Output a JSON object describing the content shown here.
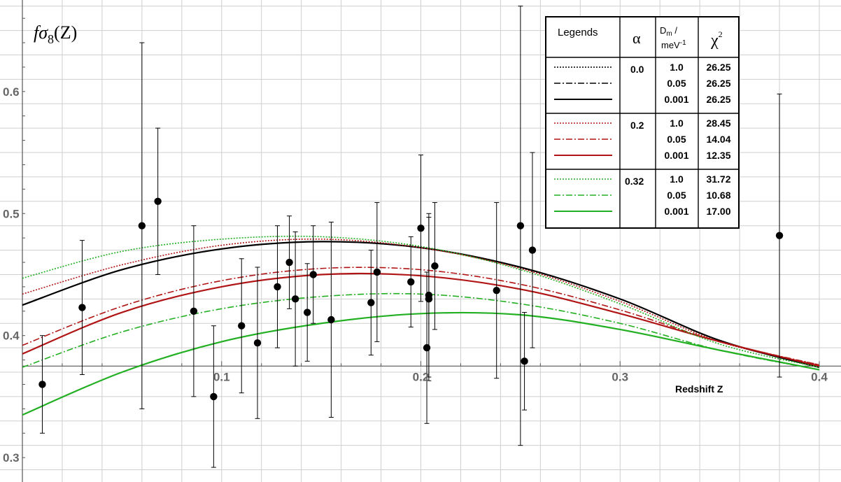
{
  "chart_data": {
    "type": "line",
    "title": "",
    "ylabel_main": "fσ",
    "ylabel_sub": "8",
    "ylabel_arg": "(Z)",
    "xlabel": "Redshift Z",
    "xlim": [
      0.0,
      0.4
    ],
    "ylim": [
      0.28,
      0.675
    ],
    "x_axis_crosses_y": 0.375,
    "grid": true,
    "x_ticks": [
      {
        "value": 0.1,
        "label": "0.1"
      },
      {
        "value": 0.2,
        "label": "0.2"
      },
      {
        "value": 0.3,
        "label": "0.3"
      },
      {
        "value": 0.4,
        "label": "0.4"
      }
    ],
    "y_ticks": [
      {
        "value": 0.3,
        "label": "0.3"
      },
      {
        "value": 0.4,
        "label": "0.4"
      },
      {
        "value": 0.5,
        "label": "0.5"
      },
      {
        "value": 0.6,
        "label": "0.6"
      }
    ],
    "series": [
      {
        "alpha": "0.0",
        "dm": "1.0",
        "color": "#000000",
        "dash": "2,2",
        "x": [
          0.0,
          0.05,
          0.1,
          0.15,
          0.2,
          0.25,
          0.3,
          0.35,
          0.4
        ],
        "y": [
          0.425,
          0.454,
          0.471,
          0.477,
          0.472,
          0.456,
          0.43,
          0.396,
          0.374
        ]
      },
      {
        "alpha": "0.0",
        "dm": "0.05",
        "color": "#000000",
        "dash": "9,3,2,3",
        "x": [
          0.0,
          0.05,
          0.1,
          0.15,
          0.2,
          0.25,
          0.3,
          0.35,
          0.4
        ],
        "y": [
          0.425,
          0.454,
          0.471,
          0.477,
          0.472,
          0.456,
          0.43,
          0.396,
          0.374
        ]
      },
      {
        "alpha": "0.0",
        "dm": "0.001",
        "color": "#000000",
        "dash": "",
        "x": [
          0.0,
          0.05,
          0.1,
          0.15,
          0.2,
          0.25,
          0.3,
          0.35,
          0.4
        ],
        "y": [
          0.425,
          0.454,
          0.471,
          0.477,
          0.472,
          0.456,
          0.43,
          0.396,
          0.374
        ]
      },
      {
        "alpha": "0.2",
        "dm": "1.0",
        "color": "#b01414",
        "dash": "2,2",
        "x": [
          0.0,
          0.05,
          0.1,
          0.15,
          0.2,
          0.25,
          0.3,
          0.35,
          0.4
        ],
        "y": [
          0.434,
          0.458,
          0.474,
          0.479,
          0.472,
          0.455,
          0.428,
          0.395,
          0.376
        ]
      },
      {
        "alpha": "0.2",
        "dm": "0.05",
        "color": "#b01414",
        "dash": "9,3,2,3",
        "x": [
          0.0,
          0.05,
          0.1,
          0.15,
          0.2,
          0.25,
          0.3,
          0.35,
          0.4
        ],
        "y": [
          0.392,
          0.424,
          0.445,
          0.455,
          0.454,
          0.442,
          0.421,
          0.395,
          0.376
        ]
      },
      {
        "alpha": "0.2",
        "dm": "0.001",
        "color": "#b01414",
        "dash": "",
        "x": [
          0.0,
          0.05,
          0.1,
          0.15,
          0.2,
          0.25,
          0.3,
          0.35,
          0.4
        ],
        "y": [
          0.385,
          0.419,
          0.44,
          0.45,
          0.449,
          0.438,
          0.418,
          0.395,
          0.375
        ]
      },
      {
        "alpha": "0.32",
        "dm": "1.0",
        "color": "#22b022",
        "dash": "2,2",
        "x": [
          0.0,
          0.05,
          0.1,
          0.15,
          0.2,
          0.25,
          0.3,
          0.35,
          0.4
        ],
        "y": [
          0.447,
          0.469,
          0.479,
          0.481,
          0.473,
          0.454,
          0.426,
          0.393,
          0.374
        ]
      },
      {
        "alpha": "0.32",
        "dm": "0.05",
        "color": "#22b022",
        "dash": "9,3,2,3",
        "x": [
          0.0,
          0.05,
          0.1,
          0.15,
          0.2,
          0.25,
          0.3,
          0.35,
          0.4
        ],
        "y": [
          0.374,
          0.403,
          0.422,
          0.432,
          0.434,
          0.426,
          0.41,
          0.388,
          0.372
        ]
      },
      {
        "alpha": "0.32",
        "dm": "0.001",
        "color": "#22b022",
        "dash": "",
        "x": [
          0.0,
          0.05,
          0.1,
          0.15,
          0.2,
          0.25,
          0.3,
          0.35,
          0.4
        ],
        "y": [
          0.335,
          0.37,
          0.395,
          0.41,
          0.418,
          0.417,
          0.405,
          0.388,
          0.372
        ]
      }
    ],
    "points": [
      {
        "x": 0.01,
        "y": 0.36,
        "yerr": 0.04
      },
      {
        "x": 0.03,
        "y": 0.423,
        "yerr": 0.055
      },
      {
        "x": 0.06,
        "y": 0.49,
        "yerr": 0.15
      },
      {
        "x": 0.068,
        "y": 0.51,
        "yerr": 0.06
      },
      {
        "x": 0.086,
        "y": 0.42,
        "yerr": 0.07
      },
      {
        "x": 0.096,
        "y": 0.35,
        "yerr": 0.058
      },
      {
        "x": 0.11,
        "y": 0.408,
        "yerr": 0.055
      },
      {
        "x": 0.118,
        "y": 0.394,
        "yerr": 0.062
      },
      {
        "x": 0.128,
        "y": 0.44,
        "yerr": 0.05
      },
      {
        "x": 0.134,
        "y": 0.46,
        "yerr": 0.038
      },
      {
        "x": 0.137,
        "y": 0.43,
        "yerr": 0.055
      },
      {
        "x": 0.143,
        "y": 0.419,
        "yerr": 0.04
      },
      {
        "x": 0.146,
        "y": 0.45,
        "yerr": 0.04
      },
      {
        "x": 0.155,
        "y": 0.413,
        "yerr": 0.08
      },
      {
        "x": 0.175,
        "y": 0.427,
        "yerr": 0.043
      },
      {
        "x": 0.178,
        "y": 0.452,
        "yerr": 0.057
      },
      {
        "x": 0.195,
        "y": 0.444,
        "yerr": 0.037
      },
      {
        "x": 0.2,
        "y": 0.488,
        "yerr": 0.06
      },
      {
        "x": 0.203,
        "y": 0.39,
        "yerr": 0.062
      },
      {
        "x": 0.204,
        "y": 0.433,
        "yerr": 0.067
      },
      {
        "x": 0.204,
        "y": 0.43,
        "yerr": 0.067
      },
      {
        "x": 0.207,
        "y": 0.457,
        "yerr": 0.052
      },
      {
        "x": 0.238,
        "y": 0.437,
        "yerr": 0.072
      },
      {
        "x": 0.25,
        "y": 0.49,
        "yerr": 0.18
      },
      {
        "x": 0.252,
        "y": 0.379,
        "yerr": 0.04
      },
      {
        "x": 0.256,
        "y": 0.47,
        "yerr": 0.08
      },
      {
        "x": 0.38,
        "y": 0.482,
        "yerr": 0.116
      }
    ]
  },
  "legend": {
    "header_legends": "Legends",
    "header_alpha": "α",
    "header_dm_line1": "D",
    "header_dm_sub": "m",
    "header_dm_slash": " /",
    "header_dm_line2": "meV",
    "header_dm_sup": "-1",
    "header_chi": "χ",
    "header_chi_sup": "2",
    "groups": [
      {
        "alpha": "0.0",
        "color": "#000000",
        "rows": [
          {
            "dm": "1.0",
            "chi2": "26.25",
            "dash": "2,2"
          },
          {
            "dm": "0.05",
            "chi2": "26.25",
            "dash": "9,3,2,3"
          },
          {
            "dm": "0.001",
            "chi2": "26.25",
            "dash": ""
          }
        ]
      },
      {
        "alpha": "0.2",
        "color": "#b01414",
        "rows": [
          {
            "dm": "1.0",
            "chi2": "28.45",
            "dash": "2,2"
          },
          {
            "dm": "0.05",
            "chi2": "14.04",
            "dash": "9,3,2,3"
          },
          {
            "dm": "0.001",
            "chi2": "12.35",
            "dash": ""
          }
        ]
      },
      {
        "alpha": "0.32",
        "color": "#22b022",
        "rows": [
          {
            "dm": "1.0",
            "chi2": "31.72",
            "dash": "2,2"
          },
          {
            "dm": "0.05",
            "chi2": "10.68",
            "dash": "9,3,2,3"
          },
          {
            "dm": "0.001",
            "chi2": "17.00",
            "dash": ""
          }
        ]
      }
    ]
  }
}
